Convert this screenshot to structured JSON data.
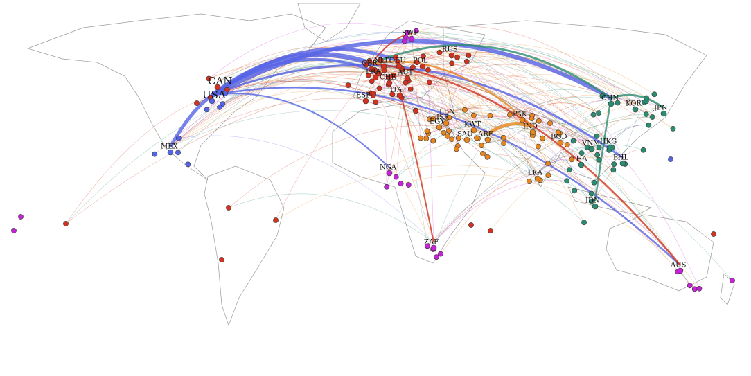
{
  "nodes": [
    {
      "label": "CAN"
    },
    {
      "label": "USA"
    },
    {
      "label": "MEX"
    },
    {
      "label": "GBR"
    },
    {
      "label": "NLD"
    },
    {
      "label": "DEU"
    },
    {
      "label": "POL"
    },
    {
      "label": "SWE"
    },
    {
      "label": "RUS"
    },
    {
      "label": "FRA"
    },
    {
      "label": "CHE"
    },
    {
      "label": "AUT"
    },
    {
      "label": "ITA"
    },
    {
      "label": "ESP"
    },
    {
      "label": "LBN"
    },
    {
      "label": "ISR"
    },
    {
      "label": "EGY"
    },
    {
      "label": "KWT"
    },
    {
      "label": "SAU"
    },
    {
      "label": "ARE"
    },
    {
      "label": "PAK"
    },
    {
      "label": "IND"
    },
    {
      "label": "BGD"
    },
    {
      "label": "LKA"
    },
    {
      "label": "CHN"
    },
    {
      "label": "KOR"
    },
    {
      "label": "JPN"
    },
    {
      "label": "HKG"
    },
    {
      "label": "VNM"
    },
    {
      "label": "THA"
    },
    {
      "label": "PHL"
    },
    {
      "label": "IDN"
    },
    {
      "label": "NGA"
    },
    {
      "label": "ZAF"
    },
    {
      "label": "AUS"
    }
  ]
}
